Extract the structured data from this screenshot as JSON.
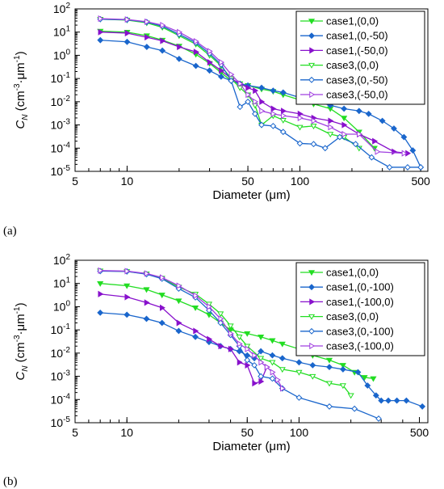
{
  "chart_data": [
    {
      "type": "line",
      "panel_label": "(a)",
      "xlabel": "Diameter (μm)",
      "ylabel": {
        "main": "C",
        "sub": "N",
        "unit_open": " (cm",
        "unit_exp1": "-3",
        "unit_mid": "·μm",
        "unit_exp2": "-1",
        "unit_close": ")"
      },
      "x_scale": "log",
      "y_scale": "log",
      "xlim": [
        5,
        550
      ],
      "ylim": [
        1e-05,
        100
      ],
      "x_ticks": [
        5,
        10,
        50,
        100,
        500
      ],
      "x_tick_labels": [
        "5",
        "10",
        "50",
        "100",
        "500"
      ],
      "y_ticks": [
        1e-05,
        0.0001,
        0.001,
        0.01,
        0.1,
        1,
        10,
        100
      ],
      "y_tick_labels": [
        {
          "base": "10",
          "exp": "-5"
        },
        {
          "base": "10",
          "exp": "-4"
        },
        {
          "base": "10",
          "exp": "-3"
        },
        {
          "base": "10",
          "exp": "-2"
        },
        {
          "base": "10",
          "exp": "-1"
        },
        {
          "base": "10",
          "exp": "0"
        },
        {
          "base": "10",
          "exp": "1"
        },
        {
          "base": "10",
          "exp": "2"
        }
      ],
      "legend_position": "top-right",
      "series": [
        {
          "name": "case1,(0,0)",
          "color": "#22dd22",
          "marker": "triangle-down",
          "filled": true,
          "x": [
            7,
            10,
            13,
            16,
            20,
            25,
            30,
            35,
            40,
            45,
            50,
            60,
            70,
            80,
            100,
            120,
            150,
            180,
            220,
            270
          ],
          "y": [
            11,
            10,
            7,
            4.5,
            2.5,
            1.1,
            0.45,
            0.18,
            0.08,
            0.06,
            0.05,
            0.035,
            0.028,
            0.02,
            0.012,
            0.008,
            0.005,
            0.002,
            0.0005,
            0.0001
          ]
        },
        {
          "name": "case1,(0,-50)",
          "color": "#1a66cc",
          "marker": "diamond",
          "filled": true,
          "x": [
            7,
            10,
            13,
            16,
            20,
            25,
            30,
            35,
            40,
            45,
            50,
            60,
            70,
            80,
            100,
            120,
            150,
            180,
            220,
            250,
            300,
            350,
            400,
            450,
            500
          ],
          "y": [
            4.5,
            3.8,
            2.3,
            1.6,
            0.7,
            0.35,
            0.22,
            0.12,
            0.08,
            0.06,
            0.05,
            0.04,
            0.03,
            0.025,
            0.015,
            0.011,
            0.007,
            0.005,
            0.004,
            0.003,
            0.0015,
            0.0007,
            0.0003,
            8e-05,
            1.5e-05
          ]
        },
        {
          "name": "case1,(-50,0)",
          "color": "#8811cc",
          "marker": "triangle-right",
          "filled": true,
          "x": [
            7,
            10,
            13,
            16,
            20,
            25,
            30,
            35,
            40,
            45,
            50,
            55,
            60,
            70,
            80,
            100,
            120,
            150,
            180,
            220,
            270,
            350,
            420
          ],
          "y": [
            10,
            9,
            6,
            4.2,
            2.3,
            1.4,
            0.5,
            0.22,
            0.1,
            0.06,
            0.04,
            0.03,
            0.01,
            0.005,
            0.004,
            0.003,
            0.002,
            0.0015,
            0.001,
            0.0004,
            0.0002,
            7e-05,
            6e-05
          ]
        },
        {
          "name": "case3,(0,0)",
          "color": "#22dd22",
          "marker": "triangle-down",
          "filled": false,
          "x": [
            7,
            10,
            13,
            16,
            20,
            25,
            30,
            35,
            40,
            45,
            50,
            55,
            60,
            70,
            80,
            100,
            120,
            150,
            180,
            220
          ],
          "y": [
            36,
            33,
            25,
            16,
            7,
            3,
            1,
            0.35,
            0.1,
            0.04,
            0.02,
            0.007,
            0.001,
            0.0025,
            0.0016,
            0.0008,
            0.0009,
            0.0004,
            0.0003,
            0.0001
          ]
        },
        {
          "name": "case3,(0,-50)",
          "color": "#1a66cc",
          "marker": "diamond",
          "filled": false,
          "x": [
            7,
            10,
            13,
            16,
            20,
            25,
            30,
            35,
            40,
            45,
            50,
            55,
            60,
            70,
            80,
            100,
            120,
            140,
            170,
            210,
            260,
            330,
            420,
            500
          ],
          "y": [
            36,
            34,
            27,
            18,
            8,
            3.5,
            1.2,
            0.4,
            0.08,
            0.006,
            0.01,
            0.003,
            0.001,
            0.0009,
            0.0005,
            0.00016,
            0.00015,
            0.0001,
            0.0003,
            0.00015,
            4e-05,
            1.5e-05,
            1.5e-05,
            1.5e-05
          ]
        },
        {
          "name": "case3,(-50,0)",
          "color": "#a040e0",
          "marker": "triangle-right",
          "filled": false,
          "x": [
            7,
            10,
            13,
            16,
            20,
            25,
            30,
            35,
            40,
            45,
            50,
            55,
            60,
            70,
            80,
            100,
            120,
            150,
            180,
            220,
            280,
            400
          ],
          "y": [
            38,
            35,
            28,
            20,
            10,
            4,
            1.5,
            0.5,
            0.15,
            0.06,
            0.02,
            0.01,
            0.004,
            0.003,
            0.0025,
            0.002,
            0.0015,
            0.0008,
            0.0004,
            0.0004,
            7e-05,
            6e-05
          ]
        }
      ]
    },
    {
      "type": "line",
      "panel_label": "(b)",
      "xlabel": "Diameter (μm)",
      "ylabel": {
        "main": "C",
        "sub": "N",
        "unit_open": " (cm",
        "unit_exp1": "-3",
        "unit_mid": "·μm",
        "unit_exp2": "-1",
        "unit_close": ")"
      },
      "x_scale": "log",
      "y_scale": "log",
      "xlim": [
        5,
        560
      ],
      "ylim": [
        1e-05,
        100
      ],
      "x_ticks": [
        5,
        10,
        50,
        100,
        500
      ],
      "x_tick_labels": [
        "5",
        "10",
        "50",
        "100",
        "500"
      ],
      "y_ticks": [
        1e-05,
        0.0001,
        0.001,
        0.01,
        0.1,
        1,
        10,
        100
      ],
      "y_tick_labels": [
        {
          "base": "10",
          "exp": "-5"
        },
        {
          "base": "10",
          "exp": "-4"
        },
        {
          "base": "10",
          "exp": "-3"
        },
        {
          "base": "10",
          "exp": "-2"
        },
        {
          "base": "10",
          "exp": "-1"
        },
        {
          "base": "10",
          "exp": "0"
        },
        {
          "base": "10",
          "exp": "1"
        },
        {
          "base": "10",
          "exp": "2"
        }
      ],
      "legend_position": "top-right",
      "series": [
        {
          "name": "case1,(0,0)",
          "color": "#22dd22",
          "marker": "triangle-down",
          "filled": true,
          "x": [
            7,
            10,
            13,
            16,
            20,
            25,
            30,
            35,
            40,
            50,
            60,
            70,
            80,
            100,
            120,
            150,
            180,
            210,
            240,
            270
          ],
          "y": [
            10,
            8,
            5.5,
            3.2,
            1.8,
            0.9,
            0.45,
            0.2,
            0.1,
            0.07,
            0.05,
            0.035,
            0.025,
            0.015,
            0.008,
            0.005,
            0.003,
            0.0015,
            0.0009,
            0.0008
          ]
        },
        {
          "name": "case1,(0,-100)",
          "color": "#1a66cc",
          "marker": "diamond",
          "filled": true,
          "x": [
            7,
            10,
            13,
            16,
            20,
            25,
            30,
            35,
            40,
            45,
            50,
            55,
            60,
            70,
            80,
            100,
            120,
            150,
            180,
            220,
            250,
            280,
            300,
            330,
            370,
            420,
            520
          ],
          "y": [
            0.55,
            0.45,
            0.3,
            0.2,
            0.09,
            0.05,
            0.03,
            0.02,
            0.015,
            0.012,
            0.008,
            0.006,
            0.012,
            0.008,
            0.006,
            0.004,
            0.003,
            0.0025,
            0.002,
            0.0015,
            0.0004,
            0.00015,
            9e-05,
            9e-05,
            9e-05,
            9e-05,
            5e-05
          ]
        },
        {
          "name": "case1,(-100,0)",
          "color": "#8811cc",
          "marker": "triangle-right",
          "filled": true,
          "x": [
            7,
            10,
            13,
            16,
            20,
            25,
            30,
            35,
            40,
            45,
            50,
            55,
            60,
            65
          ],
          "y": [
            3.5,
            2.6,
            1.5,
            0.9,
            0.2,
            0.09,
            0.04,
            0.02,
            0.015,
            0.004,
            0.003,
            0.0005,
            0.0006,
            0.0025
          ]
        },
        {
          "name": "case3,(0,0)",
          "color": "#22dd22",
          "marker": "triangle-down",
          "filled": false,
          "x": [
            7,
            10,
            13,
            16,
            20,
            25,
            30,
            35,
            40,
            45,
            50,
            60,
            70,
            80,
            100,
            120,
            150,
            180,
            200
          ],
          "y": [
            35,
            33,
            26,
            17,
            7,
            3.5,
            1.3,
            0.5,
            0.15,
            0.05,
            0.02,
            0.006,
            0.004,
            0.002,
            0.0015,
            0.001,
            0.0005,
            0.0004,
            0.00015
          ]
        },
        {
          "name": "case3,(0,-100)",
          "color": "#1a66cc",
          "marker": "diamond",
          "filled": false,
          "x": [
            7,
            10,
            13,
            16,
            20,
            25,
            30,
            35,
            40,
            45,
            50,
            55,
            60,
            70,
            80,
            100,
            150,
            210,
            290
          ],
          "y": [
            34,
            33,
            25,
            16,
            6,
            2.5,
            0.7,
            0.2,
            0.06,
            0.02,
            0.005,
            0.003,
            0.001,
            0.0008,
            0.0003,
            0.00012,
            5e-05,
            4e-05,
            1.5e-05
          ]
        },
        {
          "name": "case3,(-100,0)",
          "color": "#a040e0",
          "marker": "triangle-right",
          "filled": false,
          "x": [
            7,
            10,
            13,
            16,
            20,
            25,
            30,
            35,
            40,
            45,
            50,
            55,
            60,
            65,
            70,
            75,
            80
          ],
          "y": [
            36,
            34,
            27,
            18,
            8,
            3,
            1,
            0.3,
            0.07,
            0.025,
            0.015,
            0.008,
            0.004,
            0.0025,
            0.0015,
            0.0007,
            0.0003
          ]
        }
      ]
    }
  ]
}
